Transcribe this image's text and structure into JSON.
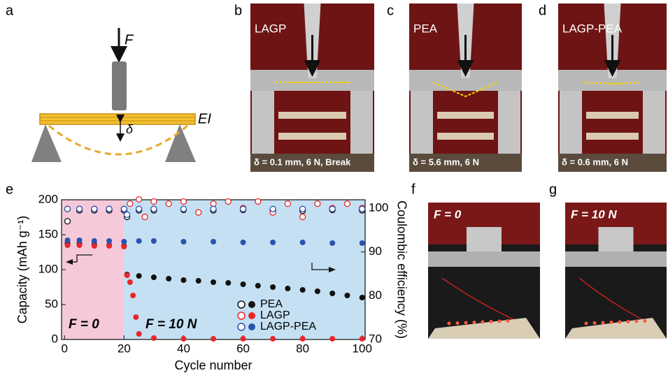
{
  "panel_labels": [
    "a",
    "b",
    "c",
    "d",
    "e",
    "f",
    "g"
  ],
  "diagram": {
    "force_label": "F",
    "deflection_label": "δ",
    "stiffness_label": "EI"
  },
  "photos": [
    {
      "title": "LAGP",
      "caption": "δ = 0.1 mm, 6 N, Break"
    },
    {
      "title": "PEA",
      "caption": "δ = 5.6 mm, 6 N"
    },
    {
      "title": "LAGP-PEA",
      "caption": "δ = 0.6 mm, 6 N"
    }
  ],
  "demo_photos": [
    {
      "label": "F = 0"
    },
    {
      "label": "F = 10 N"
    }
  ],
  "chart_data": {
    "type": "scatter",
    "x_label": "Cycle number",
    "y_label": "Capacity (mAh g⁻¹)",
    "y2_label": "Coulombic efficiency (%)",
    "annotations": [
      "F = 0",
      "F = 10 N"
    ],
    "xlim": [
      -1,
      101
    ],
    "xticks": [
      0,
      20,
      40,
      60,
      80,
      100
    ],
    "ylim": [
      0,
      200
    ],
    "yticks": [
      0,
      50,
      100,
      150,
      200
    ],
    "y2lim": [
      70,
      101.9
    ],
    "y2ticks": [
      70,
      80,
      90,
      100
    ],
    "regions": [
      {
        "from": -1,
        "to": 20,
        "color": "#f5c9d9"
      },
      {
        "from": 20,
        "to": 101,
        "color": "#c5e0f2"
      }
    ],
    "legend": "lower right",
    "series": [
      {
        "name": "PEA",
        "color": "#111111",
        "x": [
          1,
          5,
          10,
          15,
          20,
          21,
          25,
          30,
          35,
          40,
          45,
          50,
          55,
          60,
          65,
          70,
          75,
          80,
          85,
          90,
          95,
          100
        ],
        "values": [
          138,
          137,
          136,
          135,
          134,
          93,
          91,
          89,
          87,
          85,
          84,
          82,
          81,
          79,
          77,
          75,
          73,
          71,
          69,
          66,
          63,
          60
        ],
        "y2_x": [
          1,
          5,
          10,
          15,
          20,
          21,
          25,
          30,
          40,
          50,
          60,
          70,
          80,
          90,
          100
        ],
        "y2_values": [
          97,
          99.5,
          99.5,
          99.5,
          99.5,
          98,
          99.5,
          99.5,
          99.6,
          99.5,
          99.6,
          99.5,
          99.4,
          99.6,
          99.5
        ]
      },
      {
        "name": "LAGP",
        "color": "#e8262a",
        "x": [
          1,
          5,
          10,
          15,
          20,
          21,
          22,
          23,
          24,
          25,
          30,
          40,
          50,
          60,
          70,
          80,
          90,
          100
        ],
        "values": [
          135,
          135,
          134,
          134,
          133,
          92,
          82,
          63,
          32,
          8,
          2,
          1,
          1,
          1,
          1,
          1,
          1,
          1
        ],
        "y2_x": [
          1,
          5,
          10,
          15,
          20,
          22,
          25,
          27,
          30,
          35,
          40,
          45,
          50,
          55,
          60,
          65,
          70,
          75,
          80,
          85,
          90,
          95,
          100
        ],
        "y2_values": [
          99.8,
          99.8,
          99.8,
          99.8,
          99.8,
          101,
          102,
          98,
          101.5,
          101,
          101.5,
          99,
          101,
          101.5,
          100,
          101.5,
          99,
          101,
          98,
          101,
          100,
          101,
          100
        ]
      },
      {
        "name": "LAGP-PEA",
        "color": "#2a52b0",
        "x": [
          1,
          5,
          10,
          15,
          20,
          25,
          30,
          40,
          50,
          60,
          70,
          80,
          90,
          100
        ],
        "values": [
          142,
          142,
          141,
          141,
          140,
          141,
          141,
          140,
          140,
          139,
          139,
          139,
          138,
          138
        ],
        "y2_x": [
          1,
          5,
          10,
          15,
          20,
          21,
          25,
          30,
          40,
          50,
          60,
          70,
          80,
          90,
          100
        ],
        "y2_values": [
          99.8,
          99.8,
          99.8,
          99.8,
          99.8,
          98.5,
          99.8,
          99.8,
          99.8,
          99.8,
          99.8,
          99.8,
          99.8,
          99.8,
          99.8
        ]
      }
    ]
  }
}
